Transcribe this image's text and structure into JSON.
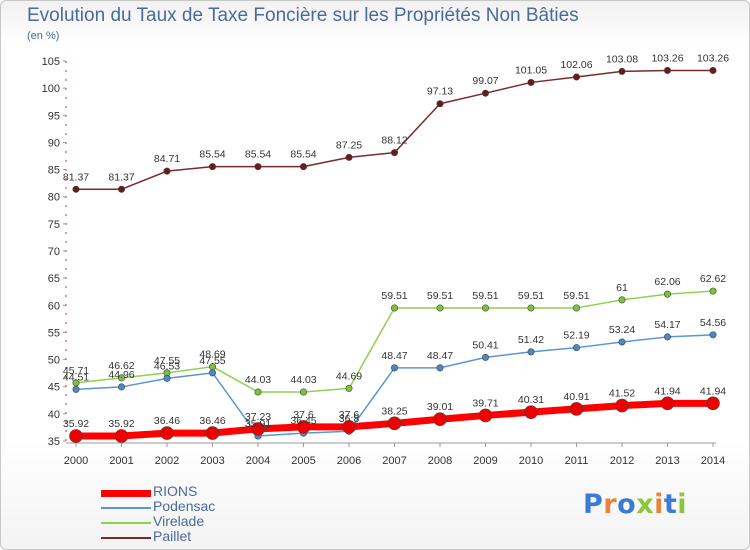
{
  "title": "Evolution du Taux de Taxe Foncière sur les Propriétés Non Bâties",
  "subtitle": "(en %)",
  "logo": {
    "letters": [
      "P",
      "r",
      "o",
      "x",
      "i",
      "t",
      "i"
    ],
    "colors": [
      "#3a7bd5",
      "#e8843b",
      "#3a7bd5",
      "#8cc63f",
      "#e8843b",
      "#3a7bd5",
      "#8cc63f"
    ]
  },
  "chart_data": {
    "type": "line",
    "title": "Evolution du Taux de Taxe Foncière sur les Propriétés Non Bâties",
    "ylabel": "(en %)",
    "x": [
      "2000",
      "2001",
      "2002",
      "2003",
      "2004",
      "2005",
      "2006",
      "2007",
      "2008",
      "2009",
      "2010",
      "2011",
      "2012",
      "2013",
      "2014"
    ],
    "ylim": [
      35,
      105
    ],
    "yticks": [
      35,
      40,
      45,
      50,
      55,
      60,
      65,
      70,
      75,
      80,
      85,
      90,
      95,
      100,
      105
    ],
    "grid": false,
    "legend": "bottom-left",
    "series": [
      {
        "name": "Paillet",
        "color": "#7a2a2a",
        "marker": "#6b1a1a",
        "values": [
          81.37,
          81.37,
          84.71,
          85.54,
          85.54,
          85.54,
          87.25,
          88.12,
          97.13,
          99.07,
          101.05,
          102.06,
          103.08,
          103.26,
          103.26
        ],
        "labels": [
          "81.37",
          "81.37",
          "84.71",
          "85.54",
          "85.54",
          "85.54",
          "87.25",
          "88.12",
          "97.13",
          "99.07",
          "101.05",
          "102.06",
          "103.08",
          "103.26",
          "103.26"
        ]
      },
      {
        "name": "Virelade",
        "color": "#8fd14f",
        "marker": "#7cc23a",
        "values": [
          45.71,
          46.62,
          47.55,
          48.69,
          44.03,
          44.03,
          44.69,
          59.51,
          59.51,
          59.51,
          59.51,
          59.51,
          61,
          62.06,
          62.62
        ],
        "labels": [
          "45.71",
          "46.62",
          "47.55",
          "48.69",
          "44.03",
          "44.03",
          "44.69",
          "59.51",
          "59.51",
          "59.51",
          "59.51",
          "59.51",
          "61",
          "62.06",
          "62.62"
        ]
      },
      {
        "name": "Podensac",
        "color": "#5a96d2",
        "marker": "#4a88c8",
        "values": [
          44.51,
          44.96,
          46.53,
          47.55,
          35.91,
          36.45,
          36.8,
          48.47,
          48.47,
          50.41,
          51.42,
          52.19,
          53.24,
          54.17,
          54.56
        ],
        "labels": [
          "44.51",
          "44.96",
          "46.53",
          "47.55",
          "35.91",
          "36.45",
          "36.8",
          "48.47",
          "48.47",
          "50.41",
          "51.42",
          "52.19",
          "53.24",
          "54.17",
          "54.56"
        ]
      },
      {
        "name": "RIONS",
        "color": "#ff0000",
        "marker": "#ee0000",
        "values": [
          35.92,
          35.92,
          36.46,
          36.46,
          37.23,
          37.6,
          37.6,
          38.25,
          39.01,
          39.71,
          40.31,
          40.91,
          41.52,
          41.94,
          41.94
        ],
        "labels": [
          "35.92",
          "35.92",
          "36.46",
          "36.46",
          "37.23",
          "37.6",
          "37.6",
          "38.25",
          "39.01",
          "39.71",
          "40.31",
          "40.91",
          "41.52",
          "41.94",
          "41.94"
        ]
      }
    ]
  },
  "legend_order": [
    "RIONS",
    "Podensac",
    "Virelade",
    "Paillet"
  ]
}
